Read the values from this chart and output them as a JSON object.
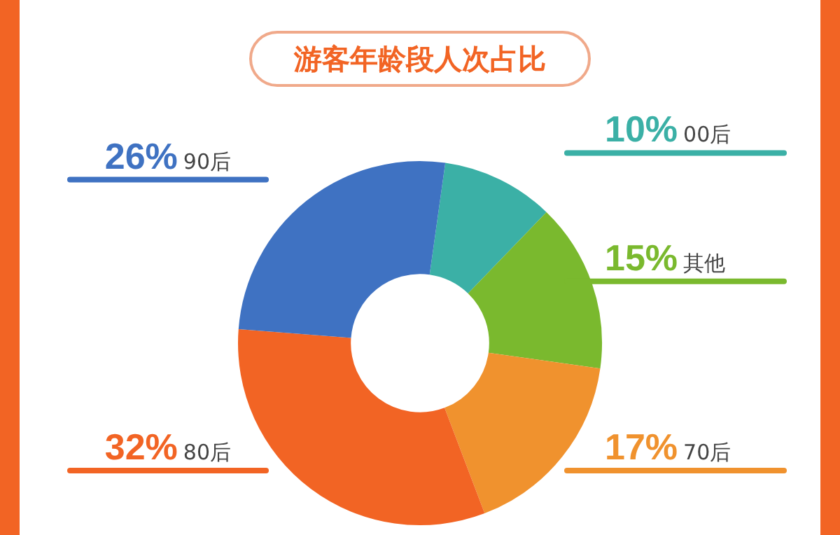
{
  "chart_data": {
    "type": "donut",
    "title": "游客年龄段人次占比",
    "categories": [
      "00后",
      "其他",
      "70后",
      "80后",
      "90后"
    ],
    "values": [
      10,
      15,
      17,
      32,
      26
    ],
    "colors": [
      "#3bb0a6",
      "#7ab92e",
      "#f0922e",
      "#f26424",
      "#3f72c2"
    ],
    "value_labels": [
      "10%",
      "15%",
      "17%",
      "32%",
      "26%"
    ],
    "legend": false
  }
}
